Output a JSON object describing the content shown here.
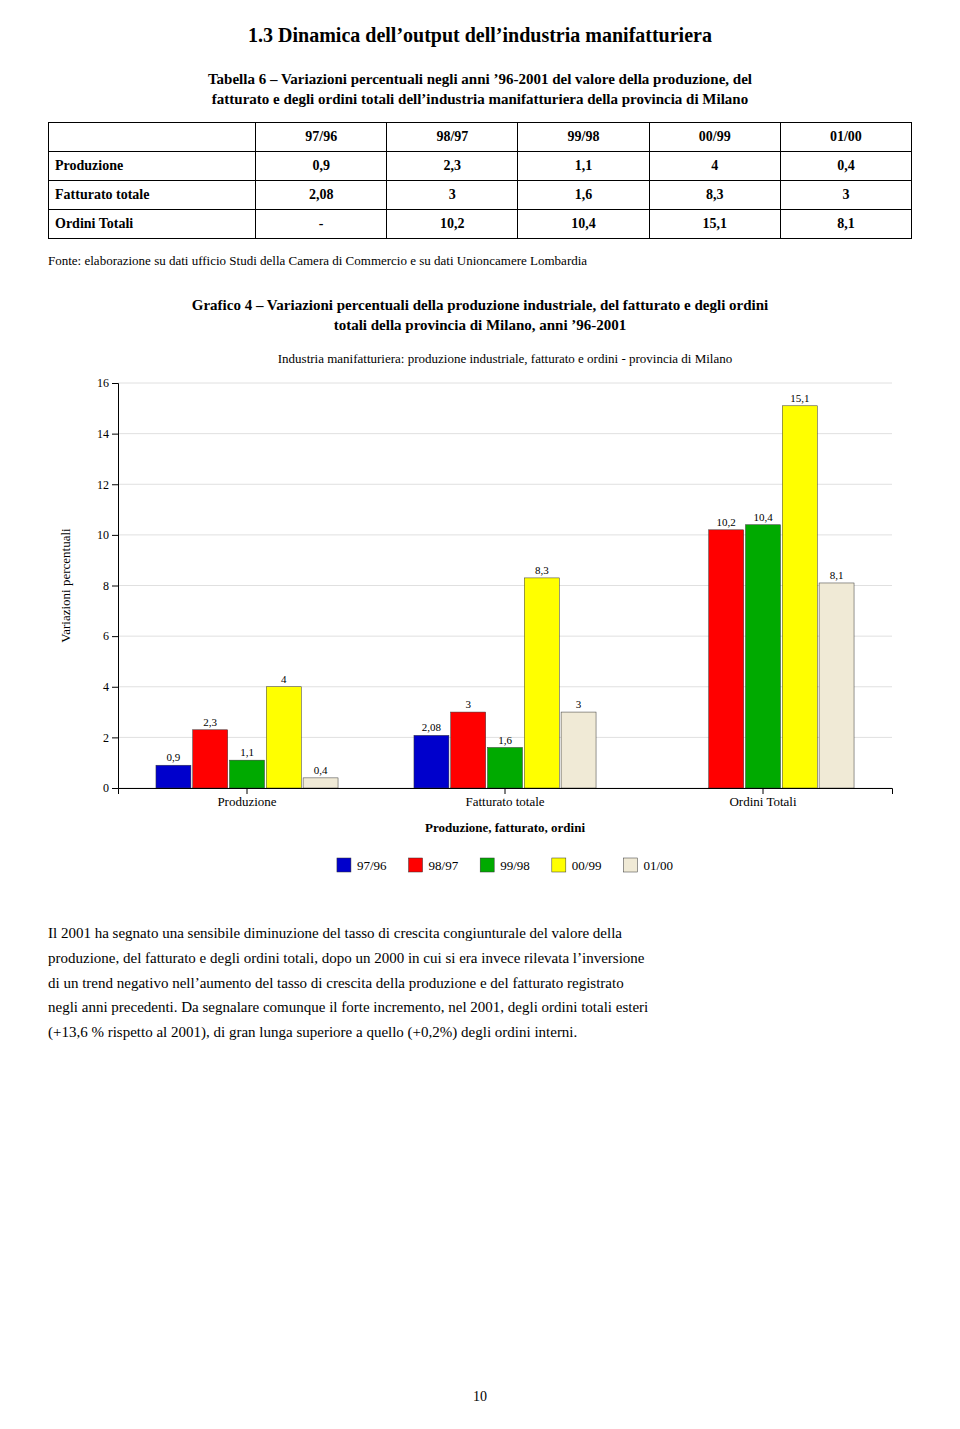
{
  "page_title": "1.3 Dinamica dell’output dell’industria manifatturiera",
  "table": {
    "title": "Tabella 6 – Variazioni percentuali negli anni ’96-2001 del valore della produzione, del\nfatturato e degli ordini totali dell’industria manifatturiera della provincia di Milano",
    "headers": [
      null,
      "97/96",
      "98/97",
      "99/98",
      "00/99",
      "01/00"
    ],
    "rows": [
      [
        "Produzione",
        "0,9",
        "2,3",
        "1,1",
        "4",
        "0,4"
      ],
      [
        "Fatturato totale",
        "2,08",
        "3",
        "1,6",
        "8,3",
        "3"
      ],
      [
        "Ordini Totali",
        "-",
        "10,2",
        "10,4",
        "15,1",
        "8,1"
      ]
    ]
  },
  "source": "Fonte: elaborazione su dati ufficio Studi della Camera di Commercio e su dati Unioncamere Lombardia",
  "figure_title": "Grafico 4 – Variazioni percentuali della produzione industriale, del fatturato e degli ordini\ntotali della provincia di Milano, anni ’96-2001",
  "chart_data": {
    "type": "bar",
    "title": "Industria manifatturiera: produzione industriale, fatturato e ordini - provincia di Milano",
    "xlabel": "Produzione, fatturato, ordini",
    "ylabel": "Variazioni percentuali",
    "categories": [
      "Produzione",
      "Fatturato totale",
      "Ordini Totali"
    ],
    "series": [
      {
        "name": "97/96",
        "color": "#0000CC",
        "values": [
          0.9,
          2.08,
          null
        ],
        "value_labels": [
          "0,9",
          "2,08",
          null
        ]
      },
      {
        "name": "98/97",
        "color": "#FF0000",
        "values": [
          2.3,
          3.0,
          10.2
        ],
        "value_labels": [
          "2,3",
          "3",
          "10,2"
        ]
      },
      {
        "name": "99/98",
        "color": "#00AA00",
        "values": [
          1.1,
          1.6,
          10.4
        ],
        "value_labels": [
          "1,1",
          "1,6",
          "10,4"
        ]
      },
      {
        "name": "00/99",
        "color": "#FFFF00",
        "values": [
          4.0,
          8.3,
          15.1
        ],
        "value_labels": [
          "4",
          "8,3",
          "15,1"
        ]
      },
      {
        "name": "01/00",
        "color": "#F0EAD6",
        "values": [
          0.4,
          3.0,
          8.1
        ],
        "value_labels": [
          "0,4",
          "3",
          "8,1"
        ]
      }
    ],
    "ylim": [
      0,
      16
    ],
    "yticks": [
      0,
      2,
      4,
      6,
      8,
      10,
      12,
      14,
      16
    ],
    "grid": true,
    "legend": "bottom",
    "data_labels": true
  },
  "body_text": "Il 2001 ha segnato una sensibile diminuzione del tasso di crescita congiunturale del valore della\nproduzione, del fatturato e degli ordini totali, dopo un 2000 in cui si era invece rilevata l’inversione\ndi un trend negativo nell’aumento del tasso di crescita della produzione e del fatturato registrato\nnegli anni precedenti. Da segnalare comunque il forte incremento, nel 2001, degli ordini totali esteri\n(+13,6 % rispetto al 2001), di gran lunga superiore a quello (+0,2%) degli ordini interni.",
  "page_number": "10"
}
